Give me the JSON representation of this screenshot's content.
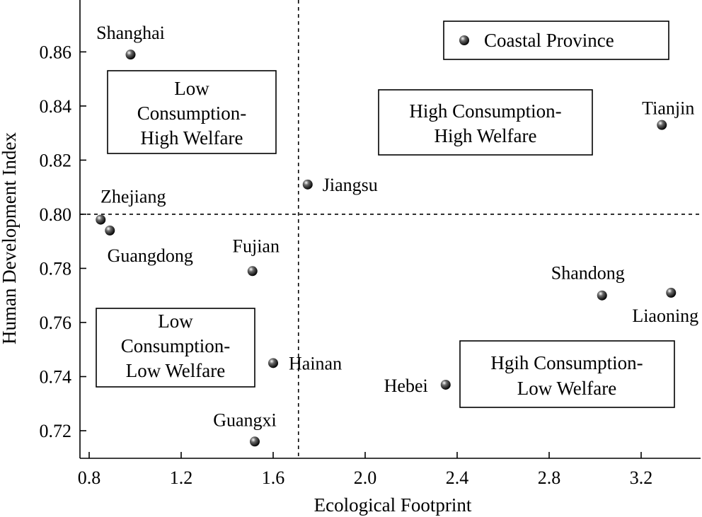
{
  "chart_data": {
    "type": "scatter",
    "title": "",
    "xlabel": "Ecological Footprint",
    "ylabel": "Human Development Index",
    "xlim": [
      0.8,
      3.47
    ],
    "ylim": [
      0.71,
      0.88
    ],
    "xticks": [
      0.8,
      1.2,
      1.6,
      2.0,
      2.4,
      2.8,
      3.2
    ],
    "xtick_labels": [
      "0.8",
      "1.2",
      "1.6",
      "2.0",
      "2.4",
      "2.8",
      "3.2"
    ],
    "yticks": [
      0.72,
      0.74,
      0.76,
      0.78,
      0.8,
      0.82,
      0.84,
      0.86
    ],
    "ytick_labels": [
      "0.72",
      "0.74",
      "0.76",
      "0.78",
      "0.80",
      "0.82",
      "0.84",
      "0.86"
    ],
    "grid": false,
    "reference_lines": {
      "x": 1.71,
      "y": 0.8
    },
    "legend": {
      "label": "Coastal Province",
      "placement": "top-right"
    },
    "points": [
      {
        "name": "Shanghai",
        "x": 0.98,
        "y": 0.859
      },
      {
        "name": "Tianjin",
        "x": 3.29,
        "y": 0.833
      },
      {
        "name": "Jiangsu",
        "x": 1.75,
        "y": 0.811
      },
      {
        "name": "Zhejiang",
        "x": 0.85,
        "y": 0.798
      },
      {
        "name": "Guangdong",
        "x": 0.89,
        "y": 0.794
      },
      {
        "name": "Fujian",
        "x": 1.51,
        "y": 0.779
      },
      {
        "name": "Shandong",
        "x": 3.03,
        "y": 0.77
      },
      {
        "name": "Liaoning",
        "x": 3.33,
        "y": 0.771
      },
      {
        "name": "Hainan",
        "x": 1.6,
        "y": 0.745
      },
      {
        "name": "Hebei",
        "x": 2.35,
        "y": 0.737
      },
      {
        "name": "Guangxi",
        "x": 1.52,
        "y": 0.716
      }
    ],
    "quadrant_labels": [
      {
        "lines": [
          "Low",
          "Consumption-",
          "High Welfare"
        ]
      },
      {
        "lines": [
          "High Consumption-",
          "High Welfare"
        ]
      },
      {
        "lines": [
          "Low",
          "Consumption-",
          "Low Welfare"
        ]
      },
      {
        "lines": [
          "Hgih Consumption-",
          "Low Welfare"
        ]
      }
    ],
    "marker_color": "#000000"
  }
}
